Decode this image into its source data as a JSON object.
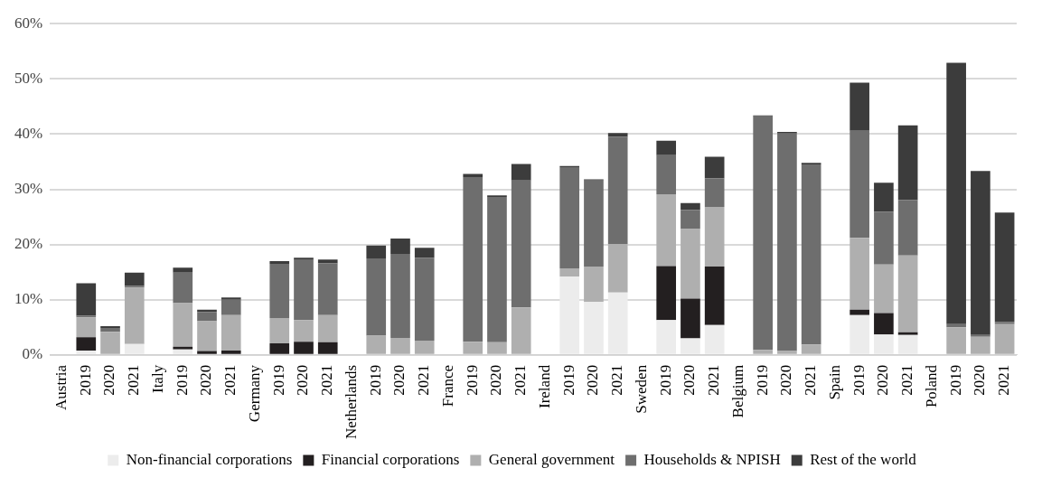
{
  "chart_data": {
    "type": "bar",
    "stacked": true,
    "categories": [
      "Austria",
      "2019",
      "2020",
      "2021",
      "Italy",
      "2019",
      "2020",
      "2021",
      "Germany",
      "2019",
      "2020",
      "2021",
      "Netherlands",
      "2019",
      "2020",
      "2021",
      "France",
      "2019",
      "2020",
      "2021",
      "Ireland",
      "2019",
      "2020",
      "2021",
      "Sweden",
      "2019",
      "2020",
      "2021",
      "Belgium",
      "2019",
      "2020",
      "2021",
      "Spain",
      "2019",
      "2020",
      "2021",
      "Poland",
      "2019",
      "2020",
      "2021"
    ],
    "series": [
      {
        "name": "Non-financial corporations",
        "color": "#ececec",
        "values": [
          null,
          0.8,
          0,
          2,
          null,
          1,
          0,
          0,
          null,
          0,
          0,
          0,
          null,
          0,
          0,
          0,
          null,
          0,
          0,
          0,
          null,
          14.2,
          9.6,
          11.3,
          null,
          6.3,
          3,
          5.4,
          null,
          0,
          0,
          0,
          null,
          7.2,
          3.7,
          3.6,
          null,
          0,
          0,
          0
        ]
      },
      {
        "name": "Financial corporations",
        "color": "#231f20",
        "values": [
          null,
          2.4,
          null,
          0,
          null,
          0.5,
          0.7,
          0.8,
          null,
          2.1,
          2.4,
          2.3,
          null,
          0,
          0,
          0,
          null,
          0,
          0,
          0,
          null,
          0,
          0,
          0,
          null,
          9.8,
          7.2,
          10.6,
          null,
          0,
          0,
          0,
          null,
          1,
          3.9,
          0.5,
          null,
          0,
          0,
          0
        ]
      },
      {
        "name": "General government",
        "color": "#afafaf",
        "values": [
          null,
          3.6,
          4.2,
          10.2,
          null,
          7.9,
          5.4,
          6.4,
          null,
          4.6,
          3.9,
          4.9,
          null,
          3.5,
          3.1,
          2.6,
          null,
          2.4,
          2.3,
          8.6,
          null,
          1.5,
          6.4,
          8.8,
          null,
          13,
          12.6,
          10.8,
          null,
          0.9,
          0.7,
          1.9,
          null,
          13,
          8.8,
          13.9,
          null,
          5,
          3.3,
          5.6
        ]
      },
      {
        "name": "Households & NPISH",
        "color": "#6e6e6e",
        "values": [
          null,
          0.3,
          0.7,
          0.3,
          null,
          5.5,
          1.7,
          2.8,
          null,
          9.8,
          10.9,
          9.4,
          null,
          14,
          15.2,
          15,
          null,
          29.8,
          26.3,
          23,
          null,
          18.3,
          15.6,
          19.4,
          null,
          7.1,
          3.5,
          5.2,
          null,
          42.3,
          39.4,
          32.6,
          null,
          19.4,
          9.5,
          10.1,
          null,
          0.6,
          0.3,
          0.4
        ]
      },
      {
        "name": "Rest of the world",
        "color": "#3c3c3c",
        "values": [
          null,
          5.9,
          0.3,
          2.4,
          null,
          0.9,
          0.4,
          0.4,
          null,
          0.5,
          0.4,
          0.7,
          null,
          2.3,
          2.8,
          1.8,
          null,
          0.6,
          0.3,
          3,
          null,
          0.2,
          0.2,
          0.7,
          null,
          2.6,
          1.2,
          3.9,
          null,
          0.2,
          0.3,
          0.3,
          null,
          8.7,
          5.3,
          13.5,
          null,
          47.3,
          29.7,
          19.8
        ]
      }
    ],
    "ylim": [
      0,
      60
    ],
    "yticks": [
      {
        "value": 0,
        "label": "0%"
      },
      {
        "value": 10,
        "label": "10%"
      },
      {
        "value": 20,
        "label": "20%"
      },
      {
        "value": 30,
        "label": "30%"
      },
      {
        "value": 40,
        "label": "40%"
      },
      {
        "value": 50,
        "label": "50%"
      },
      {
        "value": 60,
        "label": "60%"
      }
    ],
    "grid": "y",
    "legend": "bottom"
  }
}
